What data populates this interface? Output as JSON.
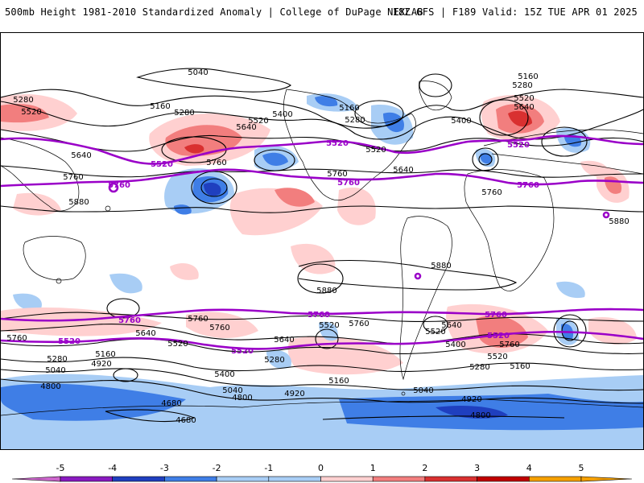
{
  "header": {
    "title_left": "500mb Height 1981-2010 Standardized Anomaly | College of DuPage NEXLAB",
    "title_right": "18Z GFS | F189 Valid: 15Z TUE APR 01 2025"
  },
  "colorbar": {
    "ticks": [
      "-5",
      "-4",
      "-3",
      "-2",
      "-1",
      "0",
      "1",
      "2",
      "3",
      "4",
      "5"
    ],
    "colors": [
      "#cc66cc",
      "#8a1ac0",
      "#1f3fbf",
      "#3f7ee6",
      "#a8cdf5",
      "#ffffff",
      "#ffd0d0",
      "#f27e7e",
      "#d93030",
      "#c00000",
      "#f5a000"
    ]
  },
  "contours": {
    "labels": {
      "l5040a": "5040",
      "l5160a": "5160",
      "l5160b": "5160",
      "l5160c": "5160",
      "l5280a": "5280",
      "l5280b": "5280",
      "l5280c": "5280",
      "l5280d": "5280",
      "l5400a": "5400",
      "l5400b": "5400",
      "l5520a": "5520",
      "l5520b": "5520",
      "l5520c": "5520",
      "l5520d": "5520",
      "l5640a": "5640",
      "l5640b": "5640",
      "l5640c": "5640",
      "l5640d": "5640",
      "l5760a": "5760",
      "l5760b": "5760",
      "l5760c": "5760",
      "l5760d": "5760",
      "l5880a": "5880",
      "l5880b": "5880",
      "l5880c": "5880",
      "s5880a": "5880",
      "s5760a": "5760",
      "s5640a": "5640",
      "s5640b": "5640",
      "s5640c": "5640",
      "s5520a": "5520",
      "s5520b": "5520",
      "s5520c": "5520",
      "s5520d": "5520",
      "s5400a": "5400",
      "s5400b": "5400",
      "s5280a": "5280",
      "s5280b": "5280",
      "s5280c": "5280",
      "s5160a": "5160",
      "s5160b": "5160",
      "s5160c": "5160",
      "s5040a": "5040",
      "s5040b": "5040",
      "s5040c": "5040",
      "s4920a": "4920",
      "s4920b": "4920",
      "s4920c": "4920",
      "s4800a": "4800",
      "s4800b": "4800",
      "s4800c": "4800",
      "s4680a": "4680",
      "s4680b": "4680",
      "s5760b": "5760",
      "s5760c": "5760",
      "s5760d": "5760",
      "s5760e": "5760"
    },
    "highlight": {
      "n5520a": "5520",
      "n5520b": "5520",
      "n5520c": "5520",
      "n5760a": "5760",
      "n5760b": "5760",
      "n5760c": "5760",
      "sh5760a": "5760",
      "sh5760b": "5760",
      "sh5760c": "5760",
      "sh5520a": "5520",
      "sh5520b": "5520",
      "sh5520c": "5520"
    }
  }
}
